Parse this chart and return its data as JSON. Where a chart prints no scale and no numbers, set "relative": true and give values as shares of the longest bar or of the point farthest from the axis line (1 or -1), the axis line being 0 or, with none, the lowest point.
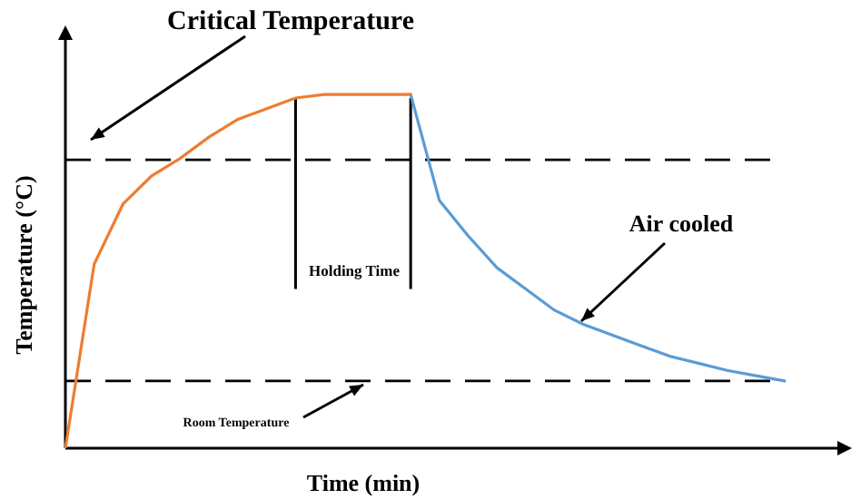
{
  "chart_data": {
    "type": "line",
    "relative": true,
    "xlabel": "Time (min)",
    "ylabel": "Temperature (°C)",
    "grid": false,
    "legend": false,
    "marker": "none",
    "line_style": "solid",
    "categories": [
      null,
      null,
      null,
      null,
      null,
      null,
      null,
      null,
      null,
      null,
      null,
      null,
      null,
      null,
      null,
      null,
      null,
      null,
      null,
      null,
      null,
      null,
      null,
      null,
      null,
      null
    ],
    "series": [
      {
        "color": "#ed7d31",
        "values": [
          0,
          0.52,
          0.69,
          0.77,
          0.82,
          0.88,
          0.93,
          0.96,
          0.99,
          1,
          1,
          1,
          1,
          null,
          null,
          null,
          null,
          null,
          null,
          null,
          null,
          null,
          null,
          null,
          null,
          null
        ]
      },
      {
        "color": "#5b9bd5",
        "values": [
          null,
          null,
          null,
          null,
          null,
          null,
          null,
          null,
          null,
          null,
          null,
          null,
          1,
          0.7,
          0.6,
          0.51,
          0.45,
          0.39,
          0.35,
          0.32,
          0.29,
          0.26,
          0.24,
          0.22,
          0.205,
          0.19
        ]
      }
    ],
    "ref_lines": [
      {
        "axis": "y",
        "value": 0.815,
        "line_style": "dashed",
        "color": "#000000"
      },
      {
        "axis": "y",
        "value": 0.19,
        "line_style": "dashed",
        "color": "#000000"
      }
    ],
    "annotations": [
      "Critical Temperature",
      "Holding Time",
      "Air cooled",
      "Room Temperature"
    ]
  }
}
